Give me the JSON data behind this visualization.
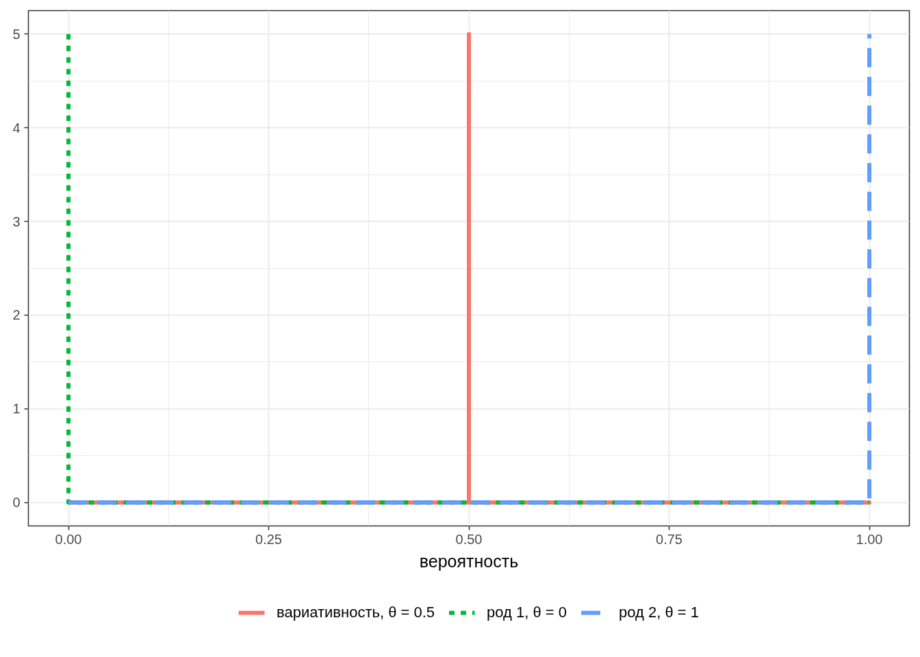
{
  "chart_data": {
    "type": "line",
    "xlabel": "вероятность",
    "xlim": [
      -0.05,
      1.05
    ],
    "ylim": [
      -0.25,
      5.25
    ],
    "xticks": [
      {
        "value": 0,
        "label": "0.00"
      },
      {
        "value": 0.25,
        "label": "0.25"
      },
      {
        "value": 0.5,
        "label": "0.50"
      },
      {
        "value": 0.75,
        "label": "0.75"
      },
      {
        "value": 1,
        "label": "1.00"
      }
    ],
    "yticks": [
      0,
      1,
      2,
      3,
      4,
      5
    ],
    "grid": true,
    "legend": "bottom",
    "series": [
      {
        "name": "вариативность, θ = 0.5",
        "color": "#f8766d",
        "line_style": "solid",
        "x": [
          0,
          0.5,
          0.5,
          0.5,
          1
        ],
        "values": [
          0,
          0,
          5,
          0,
          0
        ]
      },
      {
        "name": "род 1, θ = 0",
        "color": "#00ba38",
        "line_style": "dotted",
        "x": [
          0,
          0,
          1
        ],
        "values": [
          5,
          0,
          0
        ]
      },
      {
        "name": "род 2, θ = 1",
        "color": "#619cff",
        "line_style": "dashed",
        "x": [
          0,
          1,
          1
        ],
        "values": [
          0,
          0,
          5
        ]
      }
    ]
  }
}
